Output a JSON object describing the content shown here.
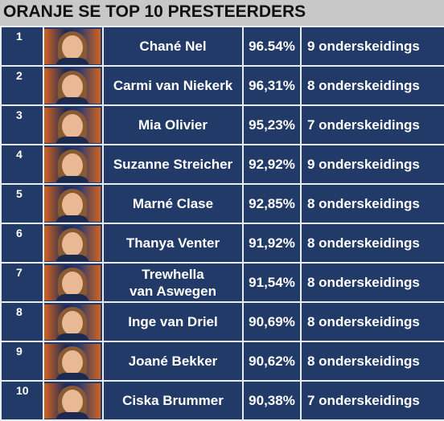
{
  "title": "ORANJE SE TOP 10 PRESTEERDERS",
  "colors": {
    "row_background": "#223a68",
    "grid_lines": "#e9edf2",
    "title_background": "#c8c8c8"
  },
  "rows": [
    {
      "rank": "1",
      "name_line1": "Chané Nel",
      "name_line2": "",
      "percentage": "96.54%",
      "distinctions": "9 onderskeidings"
    },
    {
      "rank": "2",
      "name_line1": "Carmi van Niekerk",
      "name_line2": "",
      "percentage": "96,31%",
      "distinctions": "8 onderskeidings"
    },
    {
      "rank": "3",
      "name_line1": "Mia Olivier",
      "name_line2": "",
      "percentage": "95,23%",
      "distinctions": "7 onderskeidings"
    },
    {
      "rank": "4",
      "name_line1": "Suzanne Streicher",
      "name_line2": "",
      "percentage": "92,92%",
      "distinctions": "9 onderskeidings"
    },
    {
      "rank": "5",
      "name_line1": "Marné Clase",
      "name_line2": "",
      "percentage": "92,85%",
      "distinctions": "8 onderskeidings"
    },
    {
      "rank": "6",
      "name_line1": "Thanya Venter",
      "name_line2": "",
      "percentage": "91,92%",
      "distinctions": "8 onderskeidings"
    },
    {
      "rank": "7",
      "name_line1": "Trewhella",
      "name_line2": "van Aswegen",
      "percentage": "91,54%",
      "distinctions": "8 onderskeidings"
    },
    {
      "rank": "8",
      "name_line1": "Inge van Driel",
      "name_line2": "",
      "percentage": "90,69%",
      "distinctions": "8 onderskeidings"
    },
    {
      "rank": "9",
      "name_line1": "Joané Bekker",
      "name_line2": "",
      "percentage": "90,62%",
      "distinctions": "8 onderskeidings"
    },
    {
      "rank": "10",
      "name_line1": "Ciska Brummer",
      "name_line2": "",
      "percentage": "90,38%",
      "distinctions": "7 onderskeidings"
    }
  ]
}
